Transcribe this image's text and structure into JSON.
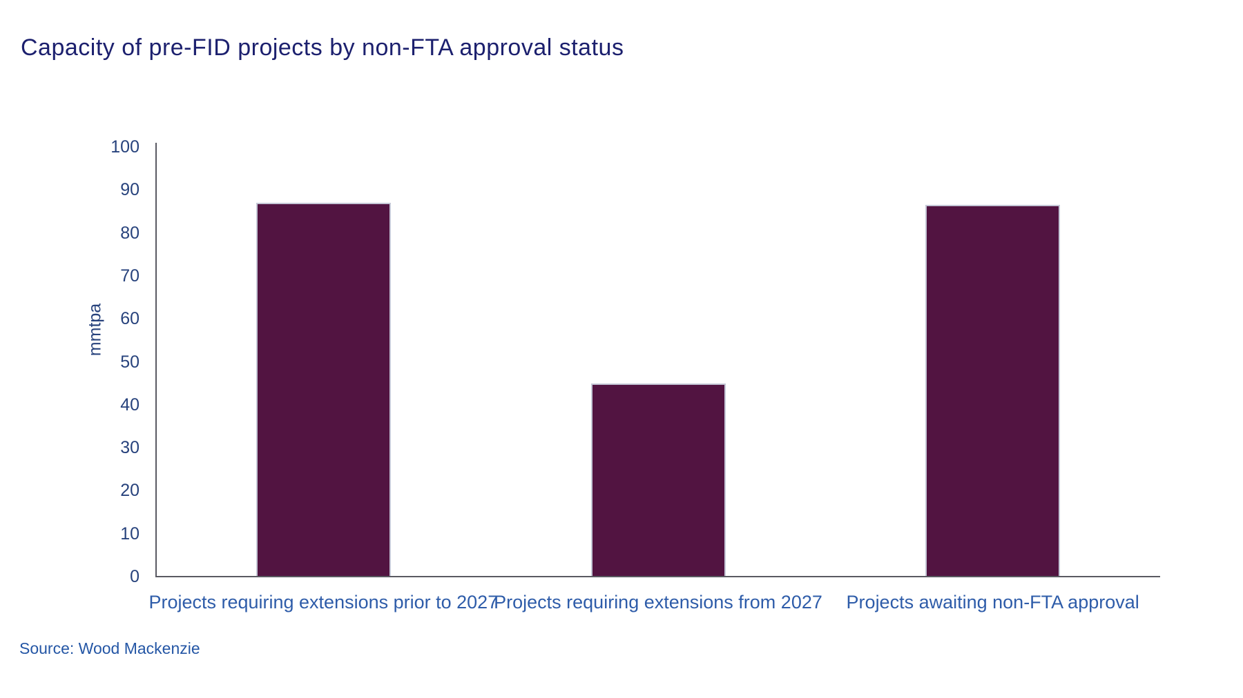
{
  "title": "Capacity of pre-FID projects by non-FTA approval status",
  "source_text": "Source: Wood Mackenzie",
  "colors": {
    "background": "#ffffff",
    "title": "#1c206e",
    "bar_fill": "#521441",
    "bar_border": "#c4c7d6",
    "axis_line": "#595961",
    "tick_label": "#27427c",
    "axis_title": "#27427c",
    "category_label": "#2e5ca9",
    "source": "#2456a5"
  },
  "chart_data": {
    "type": "bar",
    "title": "Capacity of pre-FID projects by non-FTA approval status",
    "categories": [
      "Projects requiring extensions prior to 2027",
      "Projects requiring extensions from 2027",
      "Projects awaiting non-FTA approval"
    ],
    "values": [
      87,
      45,
      86.5
    ],
    "xlabel": "",
    "ylabel": "mmtpa",
    "ylim": [
      0,
      100
    ],
    "ytick_step": 10,
    "grid": false,
    "legend": "none",
    "source": "Source: Wood Mackenzie"
  }
}
